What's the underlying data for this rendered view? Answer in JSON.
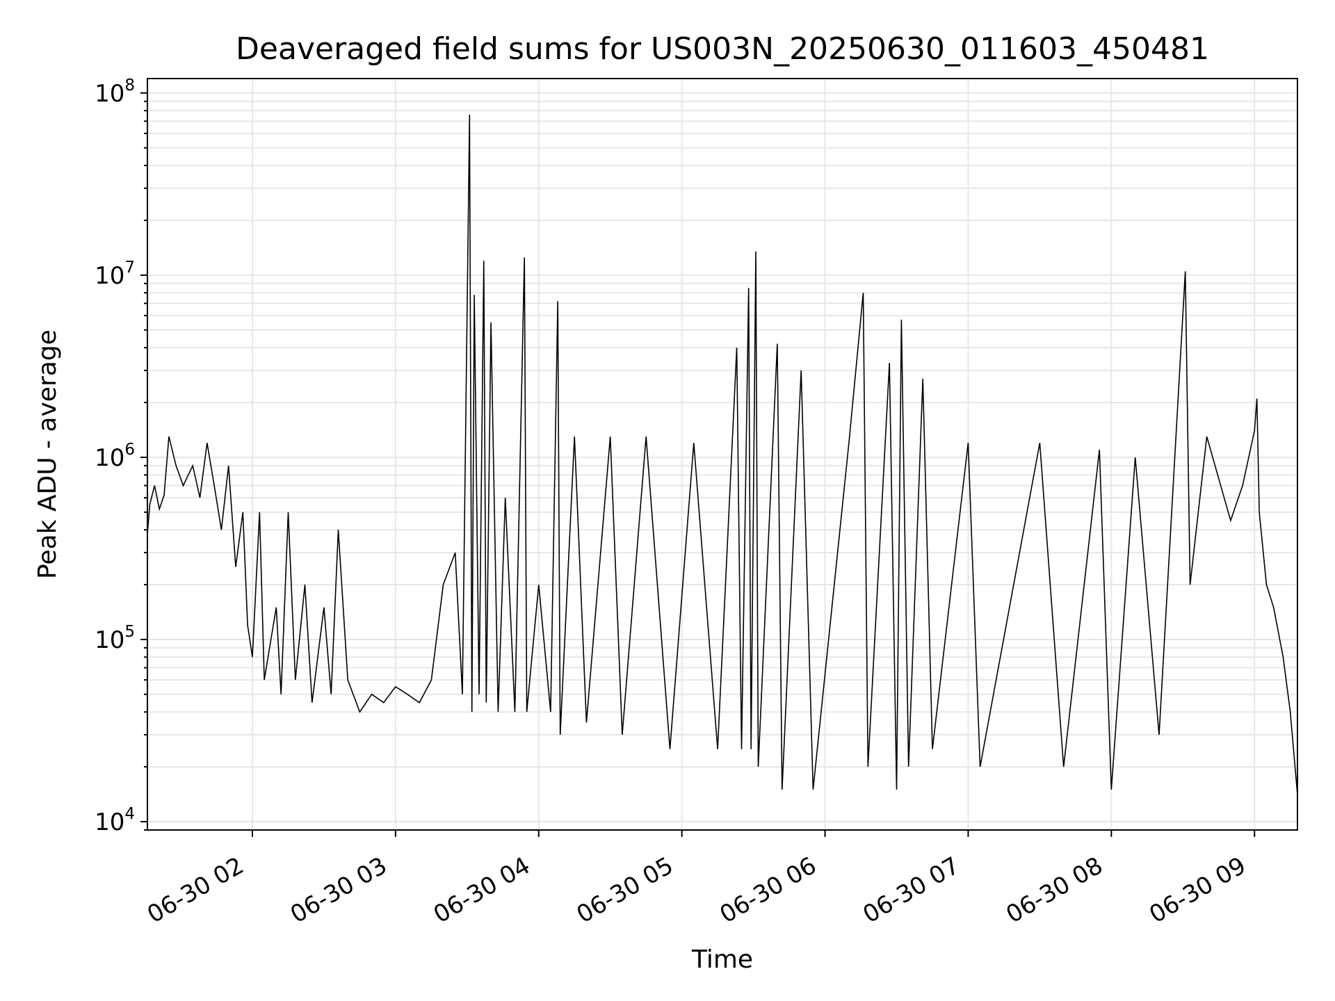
{
  "chart_data": {
    "type": "line",
    "title": "Deaveraged field sums for US003N_20250630_011603_450481",
    "xlabel": "Time",
    "ylabel": "Peak ADU - average",
    "y_scale": "log",
    "ylim": [
      9000,
      120000000
    ],
    "xlim": [
      "2025-06-30 01:16",
      "2025-06-30 09:18"
    ],
    "grid": true,
    "line_color": "#000000",
    "grid_color": "#e6e6e6",
    "x_ticks": [
      {
        "time": "2025-06-30 02:00",
        "label": "06-30 02"
      },
      {
        "time": "2025-06-30 03:00",
        "label": "06-30 03"
      },
      {
        "time": "2025-06-30 04:00",
        "label": "06-30 04"
      },
      {
        "time": "2025-06-30 05:00",
        "label": "06-30 05"
      },
      {
        "time": "2025-06-30 06:00",
        "label": "06-30 06"
      },
      {
        "time": "2025-06-30 07:00",
        "label": "06-30 07"
      },
      {
        "time": "2025-06-30 08:00",
        "label": "06-30 08"
      },
      {
        "time": "2025-06-30 09:00",
        "label": "06-30 09"
      }
    ],
    "y_ticks": [
      {
        "value": 10000,
        "base": "10",
        "exp": "4"
      },
      {
        "value": 100000,
        "base": "10",
        "exp": "5"
      },
      {
        "value": 1000000,
        "base": "10",
        "exp": "6"
      },
      {
        "value": 10000000,
        "base": "10",
        "exp": "7"
      },
      {
        "value": 100000000,
        "base": "10",
        "exp": "8"
      }
    ],
    "series": [
      {
        "points": [
          [
            "2025-06-30 01:16",
            380000
          ],
          [
            "2025-06-30 01:17",
            550000
          ],
          [
            "2025-06-30 01:19",
            700000
          ],
          [
            "2025-06-30 01:21",
            520000
          ],
          [
            "2025-06-30 01:23",
            620000
          ],
          [
            "2025-06-30 01:25",
            1300000
          ],
          [
            "2025-06-30 01:28",
            900000
          ],
          [
            "2025-06-30 01:31",
            700000
          ],
          [
            "2025-06-30 01:35",
            900000
          ],
          [
            "2025-06-30 01:38",
            600000
          ],
          [
            "2025-06-30 01:41",
            1200000
          ],
          [
            "2025-06-30 01:44",
            700000
          ],
          [
            "2025-06-30 01:47",
            400000
          ],
          [
            "2025-06-30 01:50",
            900000
          ],
          [
            "2025-06-30 01:53",
            250000
          ],
          [
            "2025-06-30 01:56",
            500000
          ],
          [
            "2025-06-30 01:58",
            120000
          ],
          [
            "2025-06-30 02:00",
            80000
          ],
          [
            "2025-06-30 02:03",
            500000
          ],
          [
            "2025-06-30 02:05",
            60000
          ],
          [
            "2025-06-30 02:10",
            150000
          ],
          [
            "2025-06-30 02:12",
            50000
          ],
          [
            "2025-06-30 02:15",
            500000
          ],
          [
            "2025-06-30 02:18",
            60000
          ],
          [
            "2025-06-30 02:22",
            200000
          ],
          [
            "2025-06-30 02:25",
            45000
          ],
          [
            "2025-06-30 02:30",
            150000
          ],
          [
            "2025-06-30 02:33",
            50000
          ],
          [
            "2025-06-30 02:36",
            400000
          ],
          [
            "2025-06-30 02:40",
            60000
          ],
          [
            "2025-06-30 02:45",
            40000
          ],
          [
            "2025-06-30 02:50",
            50000
          ],
          [
            "2025-06-30 02:55",
            45000
          ],
          [
            "2025-06-30 03:00",
            55000
          ],
          [
            "2025-06-30 03:05",
            50000
          ],
          [
            "2025-06-30 03:10",
            45000
          ],
          [
            "2025-06-30 03:15",
            60000
          ],
          [
            "2025-06-30 03:20",
            200000
          ],
          [
            "2025-06-30 03:25",
            300000
          ],
          [
            "2025-06-30 03:28",
            50000
          ],
          [
            "2025-06-30 03:31",
            76000000
          ],
          [
            "2025-06-30 03:32",
            40000
          ],
          [
            "2025-06-30 03:33",
            7800000
          ],
          [
            "2025-06-30 03:35",
            50000
          ],
          [
            "2025-06-30 03:37",
            12000000
          ],
          [
            "2025-06-30 03:38",
            45000
          ],
          [
            "2025-06-30 03:40",
            5500000
          ],
          [
            "2025-06-30 03:43",
            40000
          ],
          [
            "2025-06-30 03:46",
            600000
          ],
          [
            "2025-06-30 03:50",
            40000
          ],
          [
            "2025-06-30 03:54",
            12500000
          ],
          [
            "2025-06-30 03:55",
            40000
          ],
          [
            "2025-06-30 04:00",
            200000
          ],
          [
            "2025-06-30 04:05",
            40000
          ],
          [
            "2025-06-30 04:08",
            7200000
          ],
          [
            "2025-06-30 04:09",
            30000
          ],
          [
            "2025-06-30 04:15",
            1300000
          ],
          [
            "2025-06-30 04:20",
            35000
          ],
          [
            "2025-06-30 04:30",
            1300000
          ],
          [
            "2025-06-30 04:35",
            30000
          ],
          [
            "2025-06-30 04:45",
            1300000
          ],
          [
            "2025-06-30 04:55",
            25000
          ],
          [
            "2025-06-30 05:05",
            1200000
          ],
          [
            "2025-06-30 05:15",
            25000
          ],
          [
            "2025-06-30 05:23",
            4000000
          ],
          [
            "2025-06-30 05:25",
            25000
          ],
          [
            "2025-06-30 05:28",
            8500000
          ],
          [
            "2025-06-30 05:29",
            25000
          ],
          [
            "2025-06-30 05:31",
            13500000
          ],
          [
            "2025-06-30 05:32",
            20000
          ],
          [
            "2025-06-30 05:40",
            4200000
          ],
          [
            "2025-06-30 05:42",
            15000
          ],
          [
            "2025-06-30 05:50",
            3000000
          ],
          [
            "2025-06-30 05:55",
            15000
          ],
          [
            "2025-06-30 06:10",
            1200000
          ],
          [
            "2025-06-30 06:16",
            8000000
          ],
          [
            "2025-06-30 06:18",
            20000
          ],
          [
            "2025-06-30 06:27",
            3300000
          ],
          [
            "2025-06-30 06:30",
            15000
          ],
          [
            "2025-06-30 06:32",
            5700000
          ],
          [
            "2025-06-30 06:35",
            20000
          ],
          [
            "2025-06-30 06:41",
            2700000
          ],
          [
            "2025-06-30 06:45",
            25000
          ],
          [
            "2025-06-30 07:00",
            1200000
          ],
          [
            "2025-06-30 07:05",
            20000
          ],
          [
            "2025-06-30 07:30",
            1200000
          ],
          [
            "2025-06-30 07:40",
            20000
          ],
          [
            "2025-06-30 07:55",
            1100000
          ],
          [
            "2025-06-30 08:00",
            15000
          ],
          [
            "2025-06-30 08:10",
            1000000
          ],
          [
            "2025-06-30 08:20",
            30000
          ],
          [
            "2025-06-30 08:31",
            10500000
          ],
          [
            "2025-06-30 08:33",
            200000
          ],
          [
            "2025-06-30 08:40",
            1300000
          ],
          [
            "2025-06-30 08:50",
            450000
          ],
          [
            "2025-06-30 08:55",
            700000
          ],
          [
            "2025-06-30 09:00",
            1400000
          ],
          [
            "2025-06-30 09:01",
            2100000
          ],
          [
            "2025-06-30 09:02",
            500000
          ],
          [
            "2025-06-30 09:05",
            200000
          ],
          [
            "2025-06-30 09:08",
            150000
          ],
          [
            "2025-06-30 09:12",
            80000
          ],
          [
            "2025-06-30 09:15",
            40000
          ],
          [
            "2025-06-30 09:18",
            14000
          ]
        ]
      }
    ]
  }
}
